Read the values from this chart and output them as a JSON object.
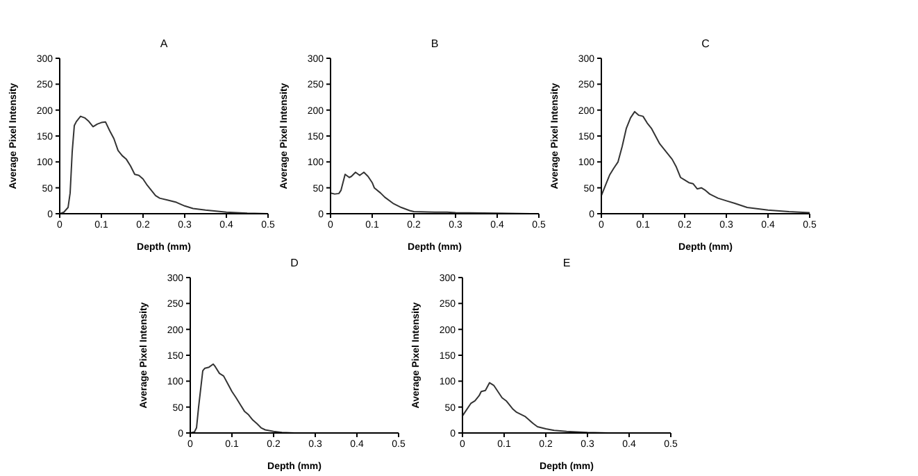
{
  "chart_data": [
    {
      "type": "line",
      "title": "A",
      "xlabel": "Depth (mm)",
      "ylabel": "Average Pixel Intensity",
      "xlim": [
        0,
        0.5
      ],
      "ylim": [
        0,
        300
      ],
      "xticks": [
        0,
        0.1,
        0.2,
        0.3,
        0.4,
        0.5
      ],
      "yticks": [
        0,
        50,
        100,
        150,
        200,
        250,
        300
      ],
      "grid": false,
      "legend": false,
      "marker": "none",
      "line_style": "solid",
      "series": [
        {
          "color": "#333333",
          "x": [
            0,
            0.01,
            0.02,
            0.025,
            0.03,
            0.035,
            0.04,
            0.05,
            0.06,
            0.07,
            0.08,
            0.09,
            0.1,
            0.11,
            0.12,
            0.13,
            0.14,
            0.15,
            0.16,
            0.17,
            0.18,
            0.19,
            0.2,
            0.21,
            0.22,
            0.23,
            0.24,
            0.26,
            0.28,
            0.3,
            0.32,
            0.35,
            0.4,
            0.45,
            0.5
          ],
          "values": [
            0,
            3,
            12,
            40,
            120,
            170,
            178,
            188,
            185,
            178,
            168,
            173,
            176,
            177,
            160,
            145,
            122,
            112,
            105,
            92,
            76,
            74,
            67,
            55,
            45,
            35,
            30,
            26,
            22,
            15,
            10,
            7,
            3,
            1,
            0
          ]
        }
      ]
    },
    {
      "type": "line",
      "title": "B",
      "xlabel": "Depth (mm)",
      "ylabel": "Average Pixel Intensity",
      "xlim": [
        0,
        0.5
      ],
      "ylim": [
        0,
        300
      ],
      "xticks": [
        0,
        0.1,
        0.2,
        0.3,
        0.4,
        0.5
      ],
      "yticks": [
        0,
        50,
        100,
        150,
        200,
        250,
        300
      ],
      "grid": false,
      "legend": false,
      "marker": "none",
      "line_style": "solid",
      "series": [
        {
          "color": "#333333",
          "x": [
            0,
            0.01,
            0.02,
            0.025,
            0.035,
            0.045,
            0.05,
            0.06,
            0.07,
            0.08,
            0.09,
            0.1,
            0.105,
            0.12,
            0.13,
            0.15,
            0.17,
            0.19,
            0.2,
            0.25,
            0.28,
            0.3,
            0.4,
            0.48
          ],
          "values": [
            40,
            38,
            39,
            45,
            76,
            70,
            72,
            80,
            74,
            80,
            72,
            60,
            50,
            40,
            32,
            20,
            12,
            6,
            4,
            3,
            3,
            2,
            1,
            0
          ]
        }
      ]
    },
    {
      "type": "line",
      "title": "C",
      "xlabel": "Depth (mm)",
      "ylabel": "Average Pixel Intensity",
      "xlim": [
        0,
        0.5
      ],
      "ylim": [
        0,
        300
      ],
      "xticks": [
        0,
        0.1,
        0.2,
        0.3,
        0.4,
        0.5
      ],
      "yticks": [
        0,
        50,
        100,
        150,
        200,
        250,
        300
      ],
      "grid": false,
      "legend": false,
      "marker": "none",
      "line_style": "solid",
      "series": [
        {
          "color": "#333333",
          "x": [
            0,
            0.005,
            0.01,
            0.02,
            0.03,
            0.04,
            0.05,
            0.06,
            0.07,
            0.08,
            0.09,
            0.1,
            0.11,
            0.12,
            0.13,
            0.14,
            0.15,
            0.16,
            0.17,
            0.18,
            0.19,
            0.2,
            0.21,
            0.22,
            0.23,
            0.24,
            0.25,
            0.26,
            0.28,
            0.3,
            0.32,
            0.35,
            0.4,
            0.45,
            0.5
          ],
          "values": [
            35,
            45,
            55,
            75,
            88,
            100,
            130,
            165,
            185,
            197,
            190,
            188,
            175,
            165,
            150,
            135,
            125,
            115,
            105,
            90,
            70,
            65,
            60,
            58,
            48,
            50,
            45,
            38,
            30,
            25,
            20,
            12,
            7,
            4,
            2
          ]
        }
      ]
    },
    {
      "type": "line",
      "title": "D",
      "xlabel": "Depth (mm)",
      "ylabel": "Average Pixel Intensity",
      "xlim": [
        0,
        0.5
      ],
      "ylim": [
        0,
        300
      ],
      "xticks": [
        0,
        0.1,
        0.2,
        0.3,
        0.4,
        0.5
      ],
      "yticks": [
        0,
        50,
        100,
        150,
        200,
        250,
        300
      ],
      "grid": false,
      "legend": false,
      "marker": "none",
      "line_style": "solid",
      "series": [
        {
          "color": "#333333",
          "x": [
            0,
            0.01,
            0.015,
            0.02,
            0.03,
            0.035,
            0.045,
            0.055,
            0.06,
            0.07,
            0.08,
            0.09,
            0.1,
            0.11,
            0.12,
            0.13,
            0.14,
            0.15,
            0.16,
            0.17,
            0.18,
            0.2,
            0.22,
            0.25,
            0.28
          ],
          "values": [
            0,
            2,
            10,
            50,
            120,
            125,
            127,
            133,
            128,
            115,
            110,
            95,
            80,
            68,
            55,
            42,
            35,
            25,
            18,
            10,
            6,
            3,
            1,
            0,
            0
          ]
        }
      ]
    },
    {
      "type": "line",
      "title": "E",
      "xlabel": "Depth (mm)",
      "ylabel": "Average Pixel Intensity",
      "xlim": [
        0,
        0.5
      ],
      "ylim": [
        0,
        300
      ],
      "xticks": [
        0,
        0.1,
        0.2,
        0.3,
        0.4,
        0.5
      ],
      "yticks": [
        0,
        50,
        100,
        150,
        200,
        250,
        300
      ],
      "grid": false,
      "legend": false,
      "marker": "none",
      "line_style": "solid",
      "series": [
        {
          "color": "#333333",
          "x": [
            0,
            0.01,
            0.02,
            0.03,
            0.04,
            0.045,
            0.055,
            0.065,
            0.075,
            0.085,
            0.095,
            0.105,
            0.12,
            0.13,
            0.15,
            0.16,
            0.17,
            0.18,
            0.2,
            0.22,
            0.25,
            0.3,
            0.35,
            0.4
          ],
          "values": [
            33,
            45,
            57,
            62,
            72,
            80,
            82,
            97,
            92,
            80,
            68,
            62,
            47,
            40,
            32,
            25,
            18,
            12,
            8,
            5,
            3,
            1,
            0,
            0
          ]
        }
      ]
    }
  ]
}
